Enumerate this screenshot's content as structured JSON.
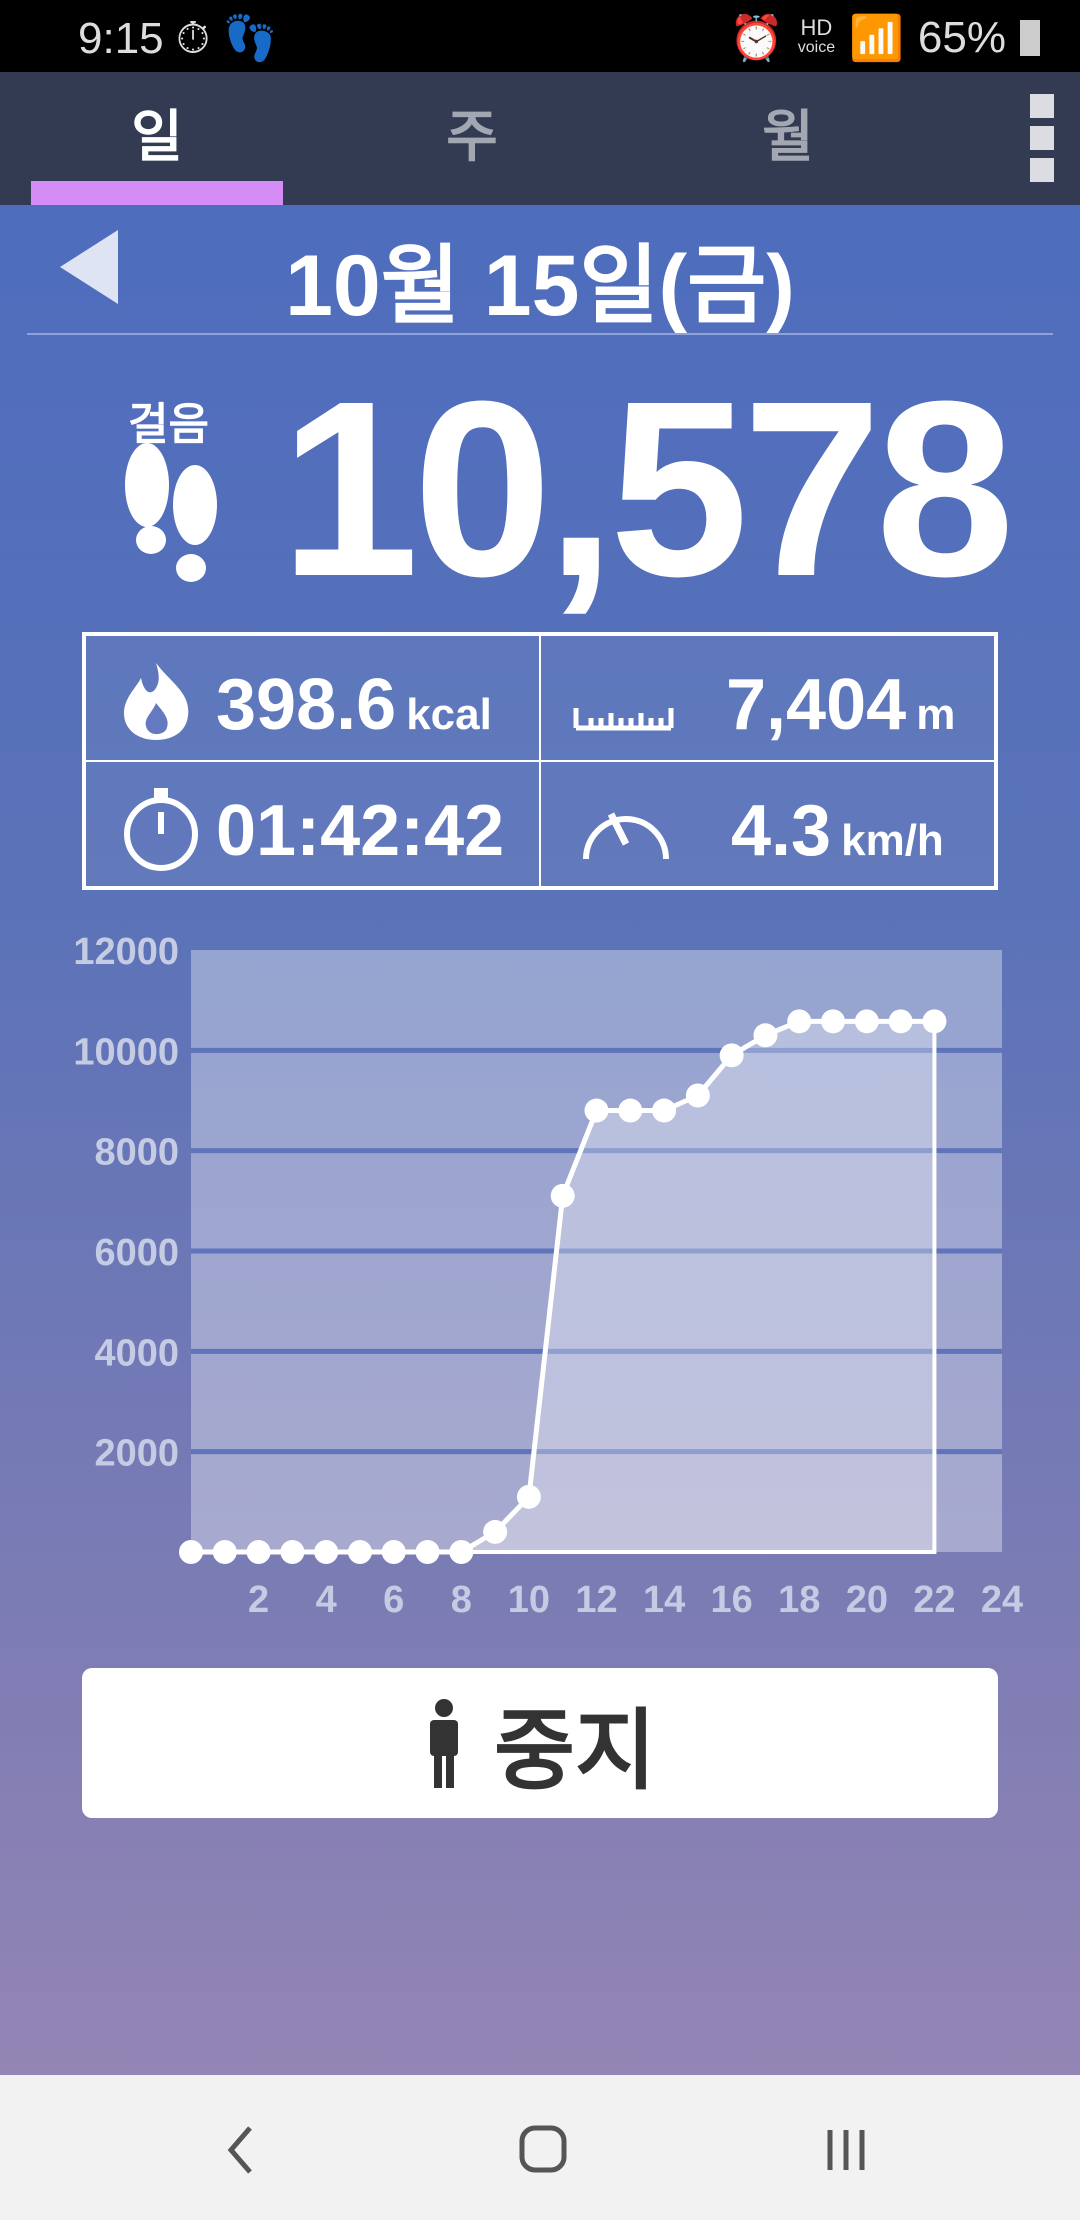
{
  "status_bar": {
    "time": "9:15",
    "battery": "65%",
    "hd_label": "HD",
    "voice_label": "voice"
  },
  "tabs": [
    {
      "label": "일",
      "active": true
    },
    {
      "label": "주",
      "active": false
    },
    {
      "label": "월",
      "active": false
    }
  ],
  "accent_color": "#d68cf7",
  "date": "10월 15일(금)",
  "steps_label": "걸음",
  "steps": "10,578",
  "stats": {
    "calories": {
      "value": "398.6",
      "unit": "kcal"
    },
    "distance": {
      "value": "7,404",
      "unit": "m"
    },
    "time": {
      "value": "01:42:42"
    },
    "speed": {
      "value": "4.3",
      "unit": "km/h"
    }
  },
  "chart_data": {
    "type": "area",
    "x": [
      0,
      1,
      2,
      3,
      4,
      5,
      6,
      7,
      8,
      9,
      10,
      11,
      12,
      13,
      14,
      15,
      16,
      17,
      18,
      19,
      20,
      21,
      22
    ],
    "values": [
      0,
      0,
      0,
      0,
      0,
      0,
      0,
      0,
      0,
      400,
      1100,
      7100,
      8800,
      8800,
      8800,
      9100,
      9900,
      10300,
      10578,
      10578,
      10578,
      10578,
      10578
    ],
    "xlim": [
      0,
      24
    ],
    "ylim": [
      0,
      12000
    ],
    "x_ticks": [
      "2",
      "4",
      "6",
      "8",
      "10",
      "12",
      "14",
      "16",
      "18",
      "20",
      "22",
      "24"
    ],
    "y_ticks": [
      "2000",
      "4000",
      "6000",
      "8000",
      "10000",
      "12000"
    ],
    "grid": true
  },
  "stop_button": {
    "label": "중지"
  }
}
